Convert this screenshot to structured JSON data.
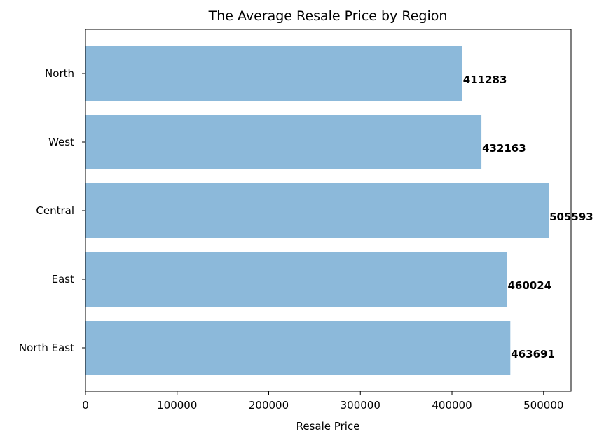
{
  "chart_data": {
    "type": "bar",
    "orientation": "horizontal",
    "title": "The Average Resale Price by Region",
    "xlabel": "Resale Price",
    "ylabel": "",
    "categories": [
      "North",
      "West",
      "Central",
      "East",
      "North East"
    ],
    "values": [
      411283,
      432163,
      505593,
      460024,
      463691
    ],
    "data_labels": [
      "411283",
      "432163",
      "505593",
      "460024",
      "463691"
    ],
    "xlim": [
      0,
      530000
    ],
    "x_ticks": [
      0,
      100000,
      200000,
      300000,
      400000,
      500000
    ],
    "x_tick_labels": [
      "0",
      "100000",
      "200000",
      "300000",
      "400000",
      "500000"
    ],
    "grid": false,
    "bar_color": "#8cb9da"
  }
}
